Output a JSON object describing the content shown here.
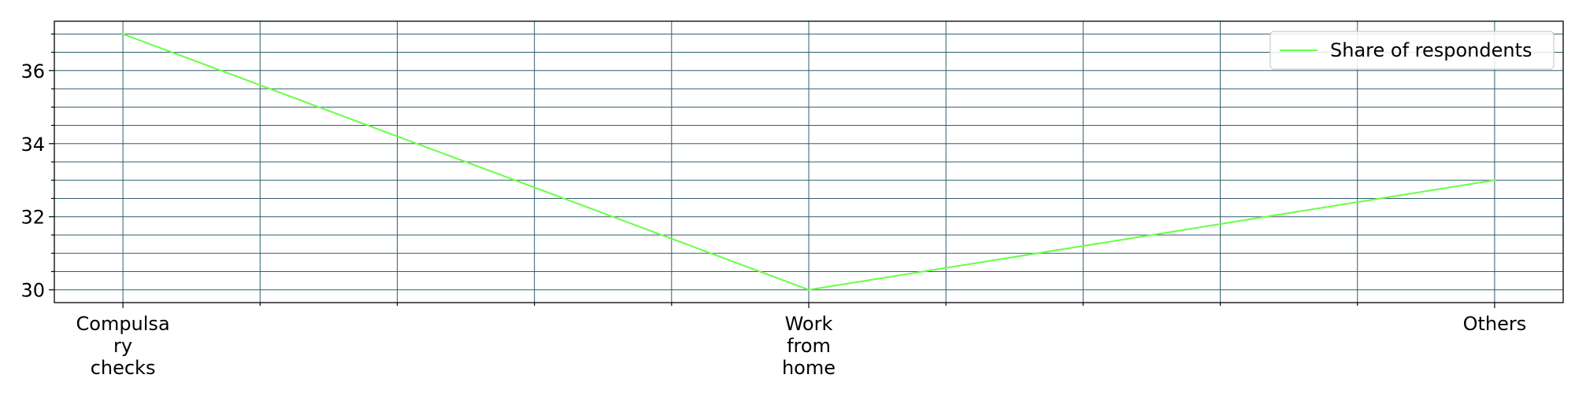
{
  "chart_data": {
    "type": "line",
    "categories": [
      "Compulsary checks",
      "Work from home",
      "Others"
    ],
    "category_label_lines": [
      [
        "Compulsa",
        "ry",
        "checks"
      ],
      [
        "Work",
        "from",
        "home"
      ],
      [
        "Others"
      ]
    ],
    "series": [
      {
        "name": "Share of respondents",
        "values": [
          37,
          30,
          33
        ],
        "color": "#66ff44"
      }
    ],
    "title": "",
    "xlabel": "",
    "ylabel": "",
    "ylim": [
      29.65,
      37.35
    ],
    "yticks": [
      30,
      32,
      34,
      36
    ],
    "y_minor_step": 0.5,
    "x_minor_divisions": 5,
    "grid": true,
    "grid_color": "#2f5f6f",
    "legend_position": "upper right"
  }
}
